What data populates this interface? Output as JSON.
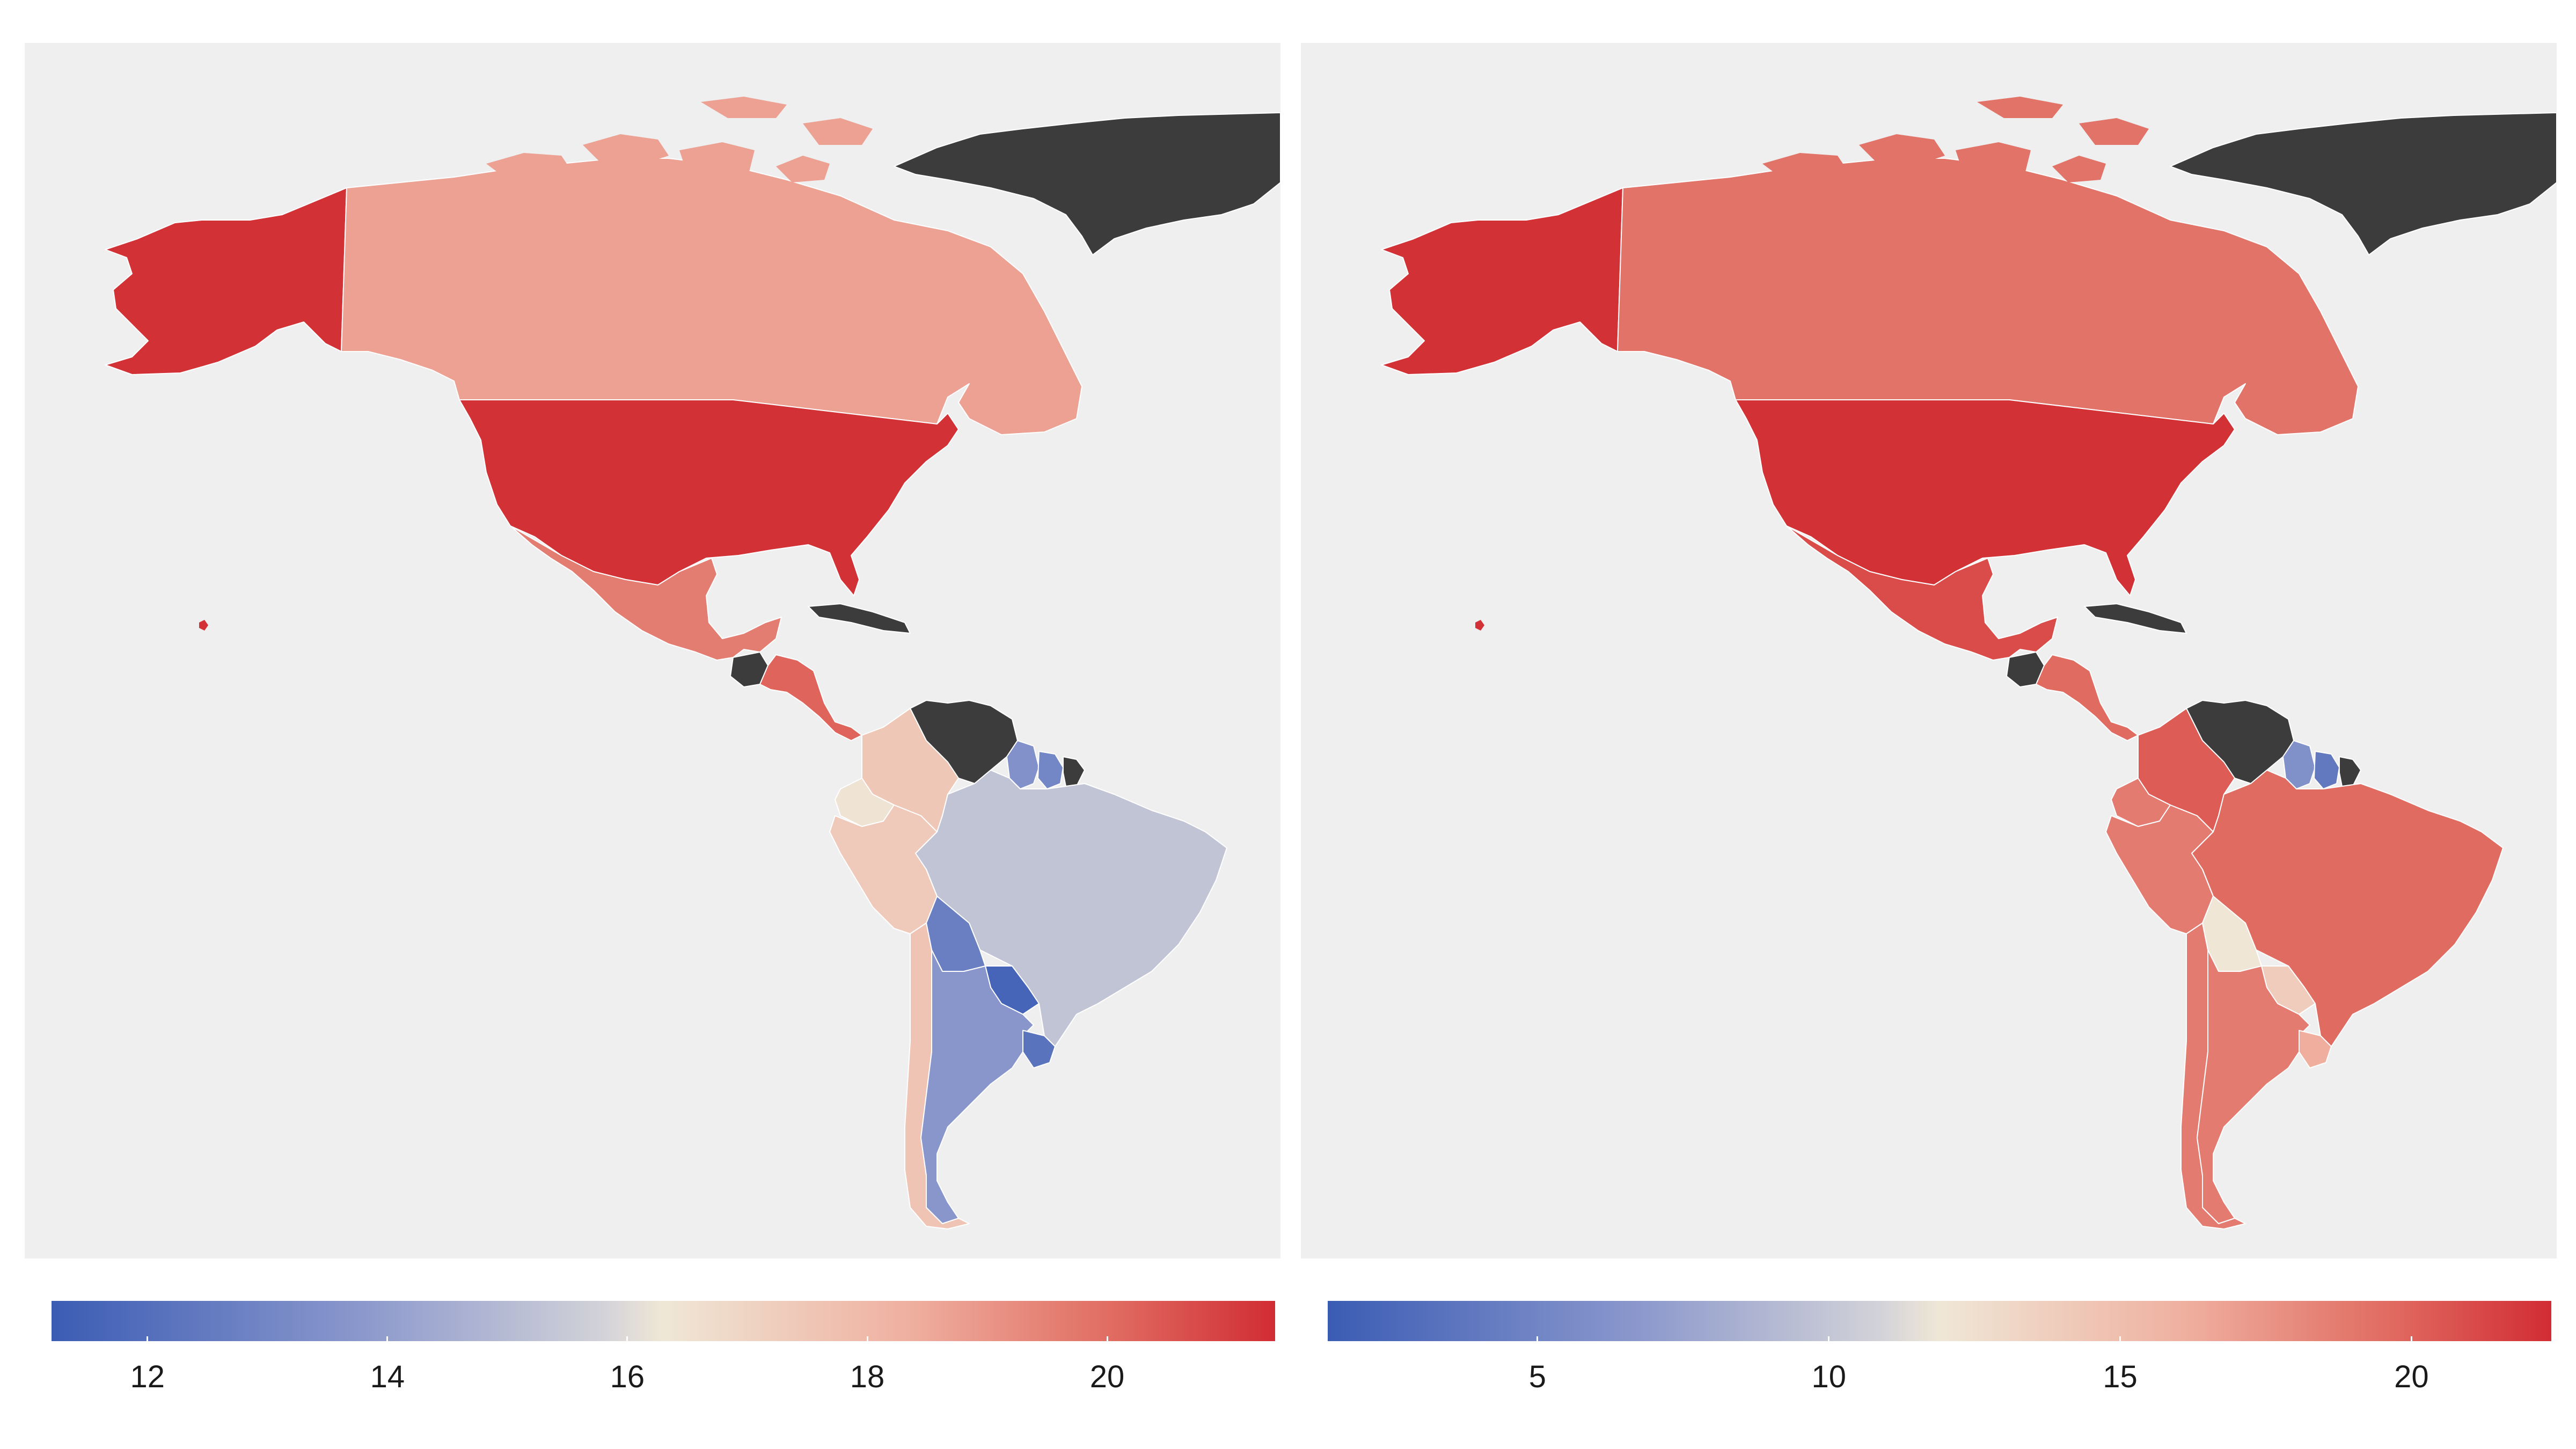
{
  "colors": {
    "background": "#efefef",
    "no_data": "#3c3c3c",
    "scale_low": "#3b5cb4",
    "scale_mid": "#efe7d6",
    "scale_high": "#d12d33"
  },
  "maps": [
    {
      "legend": {
        "ticks": [
          "12",
          "14",
          "16",
          "18",
          "20"
        ],
        "tick_values": [
          12,
          14,
          16,
          18,
          20
        ],
        "min": 11.2,
        "max": 21.4
      },
      "regions": [
        {
          "name": "Alaska",
          "value": 21.3
        },
        {
          "name": "Canada",
          "value": 18.7
        },
        {
          "name": "Greenland",
          "value": null
        },
        {
          "name": "United States",
          "value": 21.3
        },
        {
          "name": "Mexico",
          "value": 19.6
        },
        {
          "name": "Guatemala",
          "value": null
        },
        {
          "name": "Central America",
          "value": 20.2
        },
        {
          "name": "Cuba",
          "value": null
        },
        {
          "name": "Venezuela",
          "value": null
        },
        {
          "name": "Colombia",
          "value": 17.5
        },
        {
          "name": "Guyana",
          "value": 13.5
        },
        {
          "name": "Suriname",
          "value": 13.0
        },
        {
          "name": "French Guiana",
          "value": null
        },
        {
          "name": "Ecuador",
          "value": 16.4
        },
        {
          "name": "Peru",
          "value": 17.4
        },
        {
          "name": "Brazil",
          "value": 15.3
        },
        {
          "name": "Bolivia",
          "value": 12.7
        },
        {
          "name": "Paraguay",
          "value": 11.6
        },
        {
          "name": "Chile",
          "value": 17.6
        },
        {
          "name": "Argentina",
          "value": 13.7
        },
        {
          "name": "Uruguay",
          "value": 12.2
        }
      ]
    },
    {
      "legend": {
        "ticks": [
          "5",
          "10",
          "15",
          "20"
        ],
        "tick_values": [
          5,
          10,
          15,
          20
        ],
        "min": 1.4,
        "max": 22.4
      },
      "regions": [
        {
          "name": "Alaska",
          "value": 22.2
        },
        {
          "name": "Canada",
          "value": 19.2
        },
        {
          "name": "Greenland",
          "value": null
        },
        {
          "name": "United States",
          "value": 22.2
        },
        {
          "name": "Mexico",
          "value": 21.0
        },
        {
          "name": "Guatemala",
          "value": null
        },
        {
          "name": "Central America",
          "value": 19.6
        },
        {
          "name": "Cuba",
          "value": null
        },
        {
          "name": "Venezuela",
          "value": null
        },
        {
          "name": "Colombia",
          "value": 20.3
        },
        {
          "name": "Guyana",
          "value": 6.0
        },
        {
          "name": "Suriname",
          "value": 4.0
        },
        {
          "name": "French Guiana",
          "value": null
        },
        {
          "name": "Ecuador",
          "value": 18.8
        },
        {
          "name": "Peru",
          "value": 18.8
        },
        {
          "name": "Brazil",
          "value": 19.6
        },
        {
          "name": "Bolivia",
          "value": 12.0
        },
        {
          "name": "Paraguay",
          "value": 14.0
        },
        {
          "name": "Chile",
          "value": 18.8
        },
        {
          "name": "Argentina",
          "value": 18.8
        },
        {
          "name": "Uruguay",
          "value": 16.2
        }
      ]
    }
  ]
}
